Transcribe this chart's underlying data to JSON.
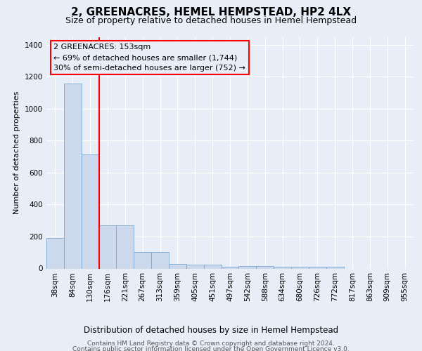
{
  "title": "2, GREENACRES, HEMEL HEMPSTEAD, HP2 4LX",
  "subtitle": "Size of property relative to detached houses in Hemel Hempstead",
  "xlabel": "Distribution of detached houses by size in Hemel Hempstead",
  "ylabel": "Number of detached properties",
  "bar_color": "#ccd9ec",
  "bar_edge_color": "#7ba7d0",
  "categories": [
    "38sqm",
    "84sqm",
    "130sqm",
    "176sqm",
    "221sqm",
    "267sqm",
    "313sqm",
    "359sqm",
    "405sqm",
    "451sqm",
    "497sqm",
    "542sqm",
    "588sqm",
    "634sqm",
    "680sqm",
    "726sqm",
    "772sqm",
    "817sqm",
    "863sqm",
    "909sqm",
    "955sqm"
  ],
  "values": [
    193,
    1160,
    715,
    270,
    270,
    105,
    105,
    30,
    25,
    25,
    12,
    15,
    15,
    12,
    12,
    12,
    12,
    0,
    0,
    0,
    0
  ],
  "ylim": [
    0,
    1450
  ],
  "yticks": [
    0,
    200,
    400,
    600,
    800,
    1000,
    1200,
    1400
  ],
  "red_line_x": 2.5,
  "annotation_text": "2 GREENACRES: 153sqm\n← 69% of detached houses are smaller (1,744)\n30% of semi-detached houses are larger (752) →",
  "footer_line1": "Contains HM Land Registry data © Crown copyright and database right 2024.",
  "footer_line2": "Contains public sector information licensed under the Open Government Licence v3.0.",
  "bg_color": "#e8eef8",
  "grid_color": "#ffffff",
  "title_fontsize": 11,
  "subtitle_fontsize": 9,
  "ylabel_fontsize": 8,
  "xlabel_fontsize": 8.5,
  "footer_fontsize": 6.5,
  "tick_fontsize": 7.5,
  "annotation_fontsize": 8
}
